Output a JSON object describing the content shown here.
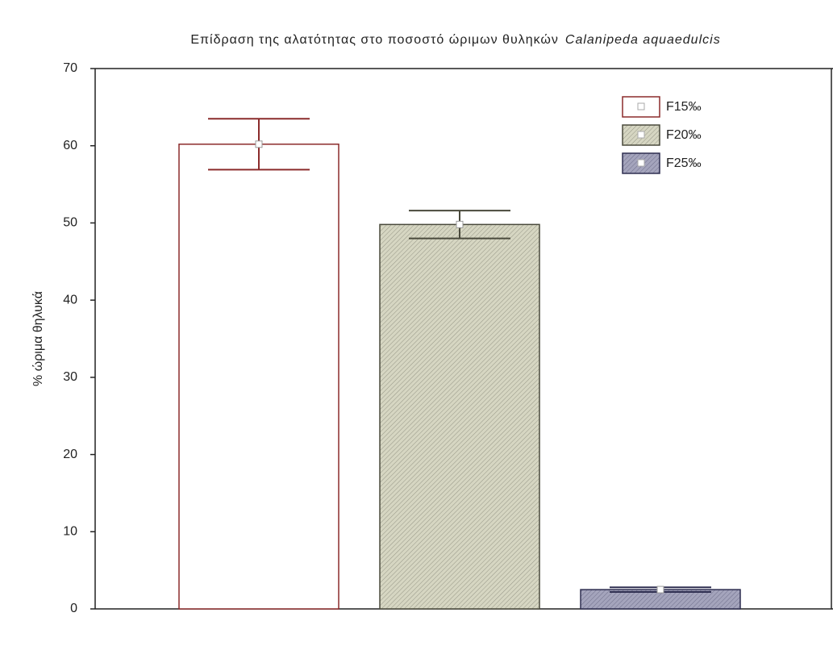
{
  "chart_data": {
    "type": "bar",
    "title": [
      "Επίδραση της αλατότητας στο ποσοστό ώριμων θυληκών",
      "Calanipeda aquaedulcis"
    ],
    "ylabel": "% ώριμα θηλυκά",
    "ylim": [
      0,
      70
    ],
    "yticks": [
      0,
      10,
      20,
      30,
      40,
      50,
      60,
      70
    ],
    "legend": "upper right",
    "series": [
      {
        "name": "F15‰",
        "color": "#ffffff",
        "edge_color": "#8b2b2b",
        "pattern": false,
        "values": [
          60.2
        ],
        "errors": [
          3.3
        ]
      },
      {
        "name": "F20‰",
        "color": "#d6d6c2",
        "edge_color": "#4a4a3c",
        "pattern": true,
        "values": [
          49.8
        ],
        "errors": [
          1.8
        ]
      },
      {
        "name": "F25‰",
        "color": "#a4a4bc",
        "edge_color": "#2e2e50",
        "pattern": true,
        "values": [
          2.5
        ],
        "errors": [
          0.3
        ]
      }
    ]
  }
}
